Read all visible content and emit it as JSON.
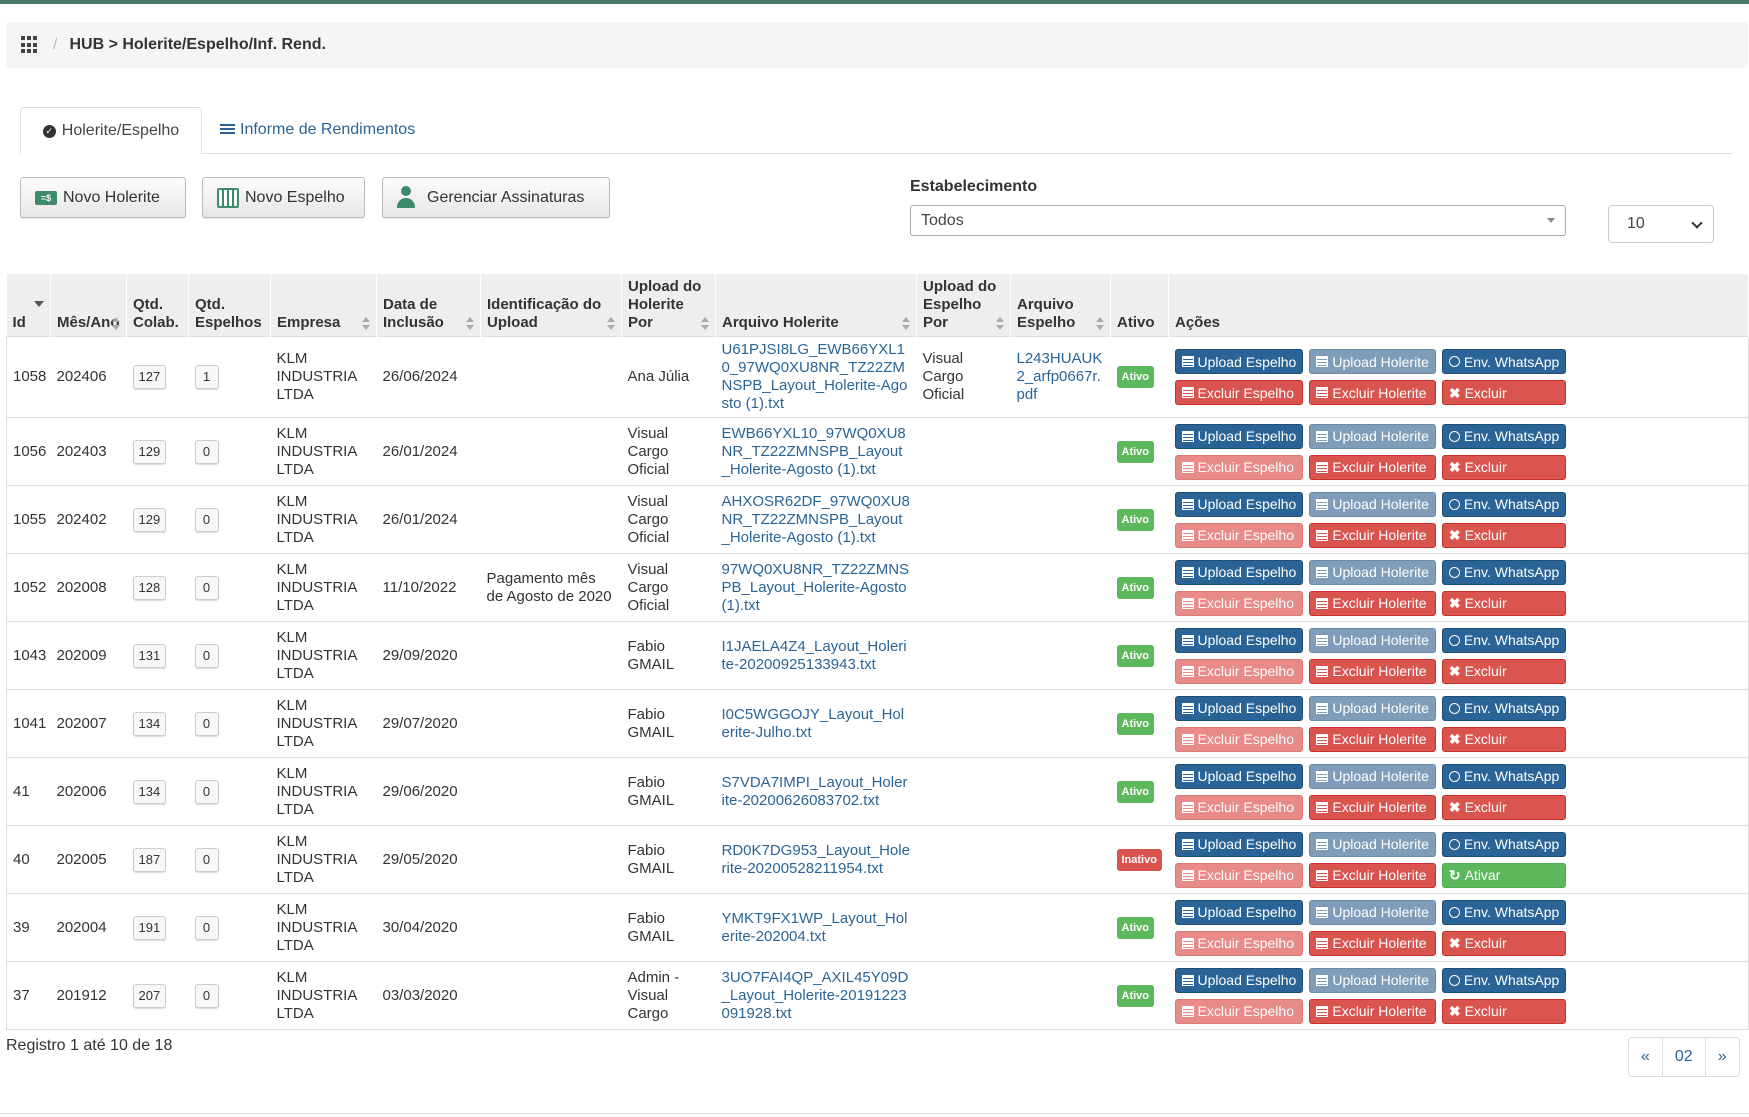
{
  "breadcrumb": {
    "path": "HUB > Holerite/Espelho/Inf. Rend."
  },
  "tabs": [
    {
      "label": "Holerite/Espelho",
      "icon": "check-circle-icon",
      "active": true
    },
    {
      "label": "Informe de Rendimentos",
      "icon": "list-icon",
      "active": false
    }
  ],
  "toolbar": {
    "novo_holerite": "Novo Holerite",
    "novo_espelho": "Novo Espelho",
    "gerenciar_assinaturas": "Gerenciar Assinaturas"
  },
  "filter": {
    "label": "Estabelecimento",
    "value": "Todos",
    "page_size": "10"
  },
  "table": {
    "headers": [
      "Id",
      "Mês/Ano",
      "Qtd. Colab.",
      "Qtd. Espelhos",
      "Empresa",
      "Data de Inclusão",
      "Identificação do Upload",
      "Upload do Holerite Por",
      "Arquivo Holerite",
      "Upload do Espelho Por",
      "Arquivo Espelho",
      "Ativo",
      "Ações"
    ],
    "rows": [
      {
        "id": "1058",
        "mes": "202406",
        "colab": "127",
        "esp": "1",
        "empresa": "KLM INDUSTRIA LTDA",
        "data": "26/06/2024",
        "ident": "",
        "hol_por": "Ana Júlia",
        "arquivo": "U61PJSI8LG_EWB66YXL10_97WQ0XU8NR_TZ22ZMNSPB_Layout_Holerite-Agosto (1).txt",
        "esp_por": "Visual Cargo Oficial",
        "arq_esp": "L243HUAUK2_arfp0667r.pdf",
        "status": "Ativo",
        "last_action": "Excluir"
      },
      {
        "id": "1056",
        "mes": "202403",
        "colab": "129",
        "esp": "0",
        "empresa": "KLM INDUSTRIA LTDA",
        "data": "26/01/2024",
        "ident": "",
        "hol_por": "Visual Cargo Oficial",
        "arquivo": "EWB66YXL10_97WQ0XU8NR_TZ22ZMNSPB_Layout_Holerite-Agosto (1).txt",
        "esp_por": "",
        "arq_esp": "",
        "status": "Ativo",
        "last_action": "Excluir"
      },
      {
        "id": "1055",
        "mes": "202402",
        "colab": "129",
        "esp": "0",
        "empresa": "KLM INDUSTRIA LTDA",
        "data": "26/01/2024",
        "ident": "",
        "hol_por": "Visual Cargo Oficial",
        "arquivo": "AHXOSR62DF_97WQ0XU8NR_TZ22ZMNSPB_Layout_Holerite-Agosto (1).txt",
        "esp_por": "",
        "arq_esp": "",
        "status": "Ativo",
        "last_action": "Excluir"
      },
      {
        "id": "1052",
        "mes": "202008",
        "colab": "128",
        "esp": "0",
        "empresa": "KLM INDUSTRIA LTDA",
        "data": "11/10/2022",
        "ident": "Pagamento mês de Agosto de 2020",
        "hol_por": "Visual Cargo Oficial",
        "arquivo": "97WQ0XU8NR_TZ22ZMNSPB_Layout_Holerite-Agosto (1).txt",
        "esp_por": "",
        "arq_esp": "",
        "status": "Ativo",
        "last_action": "Excluir"
      },
      {
        "id": "1043",
        "mes": "202009",
        "colab": "131",
        "esp": "0",
        "empresa": "KLM INDUSTRIA LTDA",
        "data": "29/09/2020",
        "ident": "",
        "hol_por": "Fabio GMAIL",
        "arquivo": "I1JAELA4Z4_Layout_Holerite-20200925133943.txt",
        "esp_por": "",
        "arq_esp": "",
        "status": "Ativo",
        "last_action": "Excluir"
      },
      {
        "id": "1041",
        "mes": "202007",
        "colab": "134",
        "esp": "0",
        "empresa": "KLM INDUSTRIA LTDA",
        "data": "29/07/2020",
        "ident": "",
        "hol_por": "Fabio GMAIL",
        "arquivo": "I0C5WGGOJY_Layout_Holerite-Julho.txt",
        "esp_por": "",
        "arq_esp": "",
        "status": "Ativo",
        "last_action": "Excluir"
      },
      {
        "id": "41",
        "mes": "202006",
        "colab": "134",
        "esp": "0",
        "empresa": "KLM INDUSTRIA LTDA",
        "data": "29/06/2020",
        "ident": "",
        "hol_por": "Fabio GMAIL",
        "arquivo": "S7VDA7IMPI_Layout_Holerite-20200626083702.txt",
        "esp_por": "",
        "arq_esp": "",
        "status": "Ativo",
        "last_action": "Excluir"
      },
      {
        "id": "40",
        "mes": "202005",
        "colab": "187",
        "esp": "0",
        "empresa": "KLM INDUSTRIA LTDA",
        "data": "29/05/2020",
        "ident": "",
        "hol_por": "Fabio GMAIL",
        "arquivo": "RD0K7DG953_Layout_Holerite-20200528211954.txt",
        "esp_por": "",
        "arq_esp": "",
        "status": "Inativo",
        "last_action": "Ativar"
      },
      {
        "id": "39",
        "mes": "202004",
        "colab": "191",
        "esp": "0",
        "empresa": "KLM INDUSTRIA LTDA",
        "data": "30/04/2020",
        "ident": "",
        "hol_por": "Fabio GMAIL",
        "arquivo": "YMKT9FX1WP_Layout_Holerite-202004.txt",
        "esp_por": "",
        "arq_esp": "",
        "status": "Ativo",
        "last_action": "Excluir"
      },
      {
        "id": "37",
        "mes": "201912",
        "colab": "207",
        "esp": "0",
        "empresa": "KLM INDUSTRIA LTDA",
        "data": "03/03/2020",
        "ident": "",
        "hol_por": "Admin - Visual Cargo",
        "arquivo": "3UO7FAI4QP_AXIL45Y09D_Layout_Holerite-20191223091928.txt",
        "esp_por": "",
        "arq_esp": "",
        "status": "Ativo",
        "last_action": "Excluir"
      }
    ]
  },
  "actions": {
    "upload_espelho": "Upload Espelho",
    "upload_holerite": "Upload Holerite",
    "env_whatsapp": "Env. WhatsApp",
    "excluir_espelho": "Excluir Espelho",
    "excluir_holerite": "Excluir Holerite"
  },
  "footer": {
    "info": "Registro 1 até 10 de 18",
    "prev": "«",
    "page": "02",
    "next": "»"
  },
  "colors": {
    "primary": "#2a6496",
    "danger": "#d9534f",
    "success": "#5cb85c",
    "accent_green": "#3c8c6c"
  }
}
